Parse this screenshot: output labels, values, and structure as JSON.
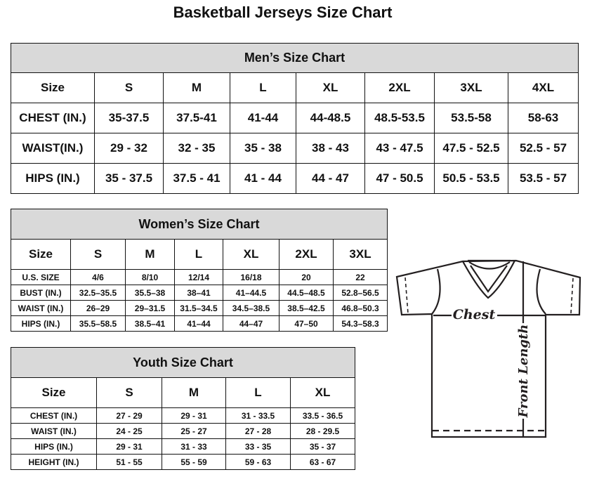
{
  "title": "Basketball Jerseys Size Chart",
  "men": {
    "heading": "Men’s Size Chart",
    "header": [
      "Size",
      "S",
      "M",
      "L",
      "XL",
      "2XL",
      "3XL",
      "4XL"
    ],
    "rows": [
      [
        "CHEST (IN.)",
        "35-37.5",
        "37.5-41",
        "41-44",
        "44-48.5",
        "48.5-53.5",
        "53.5-58",
        "58-63"
      ],
      [
        "WAIST(IN.)",
        "29 - 32",
        "32 - 35",
        "35 - 38",
        "38 - 43",
        "43 - 47.5",
        "47.5 - 52.5",
        "52.5 - 57"
      ],
      [
        "HIPS (IN.)",
        "35 - 37.5",
        "37.5 - 41",
        "41 - 44",
        "44 - 47",
        "47 - 50.5",
        "50.5 - 53.5",
        "53.5 - 57"
      ]
    ]
  },
  "women": {
    "heading": "Women’s Size Chart",
    "header": [
      "Size",
      "S",
      "M",
      "L",
      "XL",
      "2XL",
      "3XL"
    ],
    "rows": [
      [
        "U.S. SIZE",
        "4/6",
        "8/10",
        "12/14",
        "16/18",
        "20",
        "22"
      ],
      [
        "BUST (IN.)",
        "32.5–35.5",
        "35.5–38",
        "38–41",
        "41–44.5",
        "44.5–48.5",
        "52.8–56.5"
      ],
      [
        "WAIST (IN.)",
        "26–29",
        "29–31.5",
        "31.5–34.5",
        "34.5–38.5",
        "38.5–42.5",
        "46.8–50.3"
      ],
      [
        "HIPS (IN.)",
        "35.5–58.5",
        "38.5–41",
        "41–44",
        "44–47",
        "47–50",
        "54.3–58.3"
      ]
    ]
  },
  "youth": {
    "heading": "Youth Size Chart",
    "header": [
      "Size",
      "S",
      "M",
      "L",
      "XL"
    ],
    "rows": [
      [
        "CHEST (IN.)",
        "27 - 29",
        "29 - 31",
        "31 - 33.5",
        "33.5 - 36.5"
      ],
      [
        "WAIST (IN.)",
        "24 - 25",
        "25 - 27",
        "27 - 28",
        "28 - 29.5"
      ],
      [
        "HIPS (IN.)",
        "29 - 31",
        "31 - 33",
        "33 - 35",
        "35 - 37"
      ],
      [
        "HEIGHT (IN.)",
        "51 - 55",
        "55 - 59",
        "59 - 63",
        "63 - 67"
      ]
    ]
  },
  "diagram": {
    "chest_label": "Chest",
    "length_label": "Front Length"
  }
}
